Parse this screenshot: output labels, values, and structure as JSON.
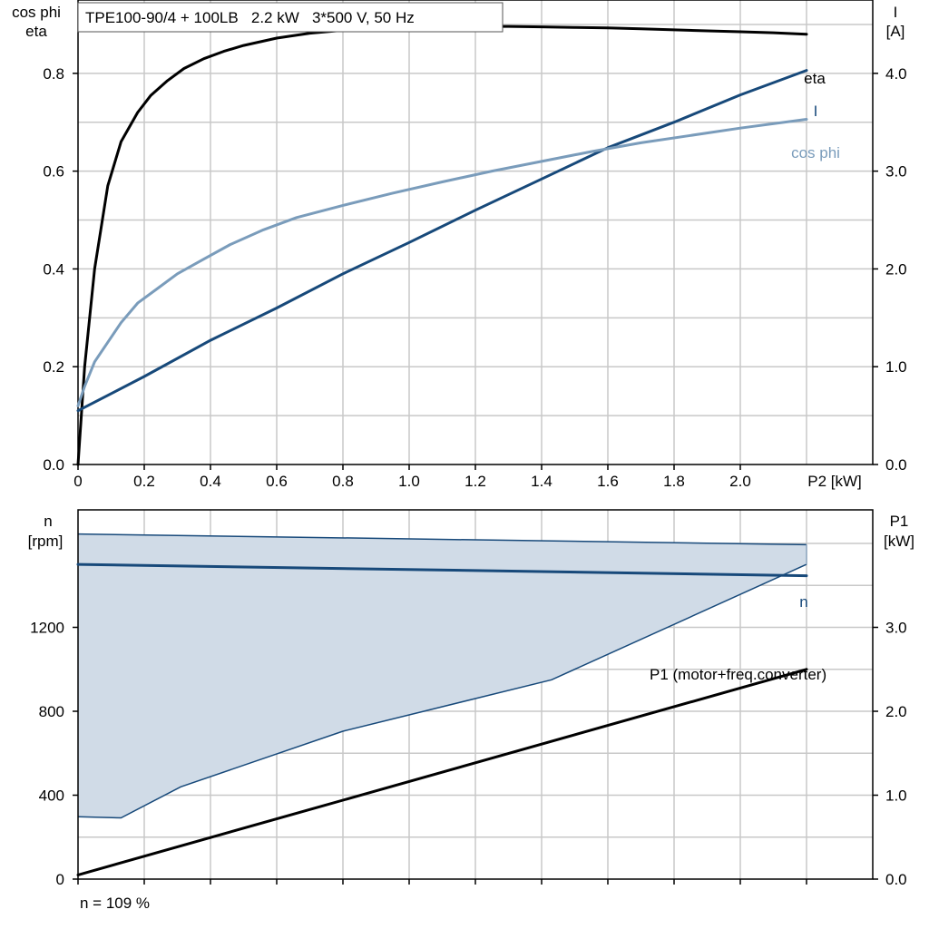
{
  "chart_data": [
    {
      "type": "line",
      "title": "TPE100-90/4 + 100LB   2.2 kW   3*500 V, 50 Hz",
      "xlabel": "P2 [kW]",
      "ylabel_left_line1": "cos phi",
      "ylabel_left_line2": "eta",
      "ylabel_right_line1": "I",
      "ylabel_right_line2": "[A]",
      "xlim": [
        0,
        2.4
      ],
      "ylim_left": [
        0,
        0.95
      ],
      "ylim_right": [
        0,
        4.75
      ],
      "x_ticks": [
        "0",
        "0.2",
        "0.4",
        "0.6",
        "0.8",
        "1.0",
        "1.2",
        "1.4",
        "1.6",
        "1.8",
        "2.0"
      ],
      "y_left_ticks": [
        "0.0",
        "0.2",
        "0.4",
        "0.6",
        "0.8"
      ],
      "y_right_ticks": [
        "0.0",
        "1.0",
        "2.0",
        "3.0",
        "4.0"
      ],
      "grid": true,
      "series": [
        {
          "name": "eta",
          "axis": "left",
          "color": "#000000",
          "x": [
            0,
            0.02,
            0.05,
            0.09,
            0.13,
            0.18,
            0.22,
            0.27,
            0.32,
            0.38,
            0.44,
            0.5,
            0.6,
            0.7,
            0.8,
            0.9,
            1.0,
            1.1,
            1.2,
            1.3,
            1.4,
            1.5,
            1.6,
            1.7,
            1.8,
            1.9,
            2.0,
            2.1,
            2.2
          ],
          "values": [
            0,
            0.2,
            0.4,
            0.57,
            0.66,
            0.72,
            0.755,
            0.785,
            0.81,
            0.83,
            0.845,
            0.857,
            0.872,
            0.882,
            0.888,
            0.892,
            0.894,
            0.895,
            0.896,
            0.896,
            0.895,
            0.894,
            0.893,
            0.891,
            0.889,
            0.887,
            0.885,
            0.883,
            0.88
          ]
        },
        {
          "name": "I",
          "axis": "right",
          "color": "#17497a",
          "x": [
            0,
            0.2,
            0.4,
            0.6,
            0.8,
            1.0,
            1.2,
            1.4,
            1.6,
            1.8,
            2.0,
            2.2
          ],
          "values": [
            0.55,
            0.9,
            1.27,
            1.6,
            1.95,
            2.27,
            2.6,
            2.92,
            3.24,
            3.5,
            3.78,
            4.03
          ]
        },
        {
          "name": "cos phi",
          "axis": "left",
          "color": "#7a9cbb",
          "x": [
            0,
            0.02,
            0.05,
            0.09,
            0.13,
            0.18,
            0.24,
            0.3,
            0.38,
            0.46,
            0.56,
            0.66,
            0.8,
            0.95,
            1.1,
            1.25,
            1.4,
            1.55,
            1.7,
            1.85,
            2.0,
            2.2
          ],
          "values": [
            0.12,
            0.16,
            0.21,
            0.25,
            0.29,
            0.33,
            0.36,
            0.39,
            0.42,
            0.45,
            0.48,
            0.505,
            0.53,
            0.555,
            0.578,
            0.6,
            0.62,
            0.64,
            0.658,
            0.673,
            0.688,
            0.706
          ]
        }
      ],
      "annotations": [
        "eta",
        "I",
        "cos phi"
      ]
    },
    {
      "type": "area",
      "xlabel": "",
      "ylabel_left_line1": "n",
      "ylabel_left_line2": "[rpm]",
      "ylabel_right_line1": "P1",
      "ylabel_right_line2": "[kW]",
      "xlim": [
        0,
        2.4
      ],
      "ylim_left": [
        0,
        1760
      ],
      "ylim_right": [
        0,
        4.4
      ],
      "y_left_ticks": [
        "0",
        "400",
        "800",
        "1200"
      ],
      "y_right_ticks": [
        "0.0",
        "1.0",
        "2.0",
        "3.0"
      ],
      "grid": true,
      "n_range": {
        "upper": {
          "x": [
            0,
            2.2
          ],
          "values": [
            1645,
            1594
          ]
        },
        "lower": {
          "x": [
            0,
            0.13,
            0.31,
            0.8,
            1.43,
            2.2
          ],
          "values": [
            297,
            292,
            440,
            705,
            950,
            1500
          ]
        }
      },
      "series": [
        {
          "name": "n",
          "axis": "left",
          "color": "#17497a",
          "x": [
            0,
            2.2
          ],
          "values": [
            1500,
            1446
          ]
        },
        {
          "name": "P1 (motor+freq.converter)",
          "axis": "right",
          "color": "#000000",
          "x": [
            0,
            2.2
          ],
          "values": [
            0.05,
            2.5
          ]
        }
      ],
      "annotations": [
        "n",
        "P1 (motor+freq.converter)"
      ],
      "footnote": "n = 109 %"
    }
  ]
}
